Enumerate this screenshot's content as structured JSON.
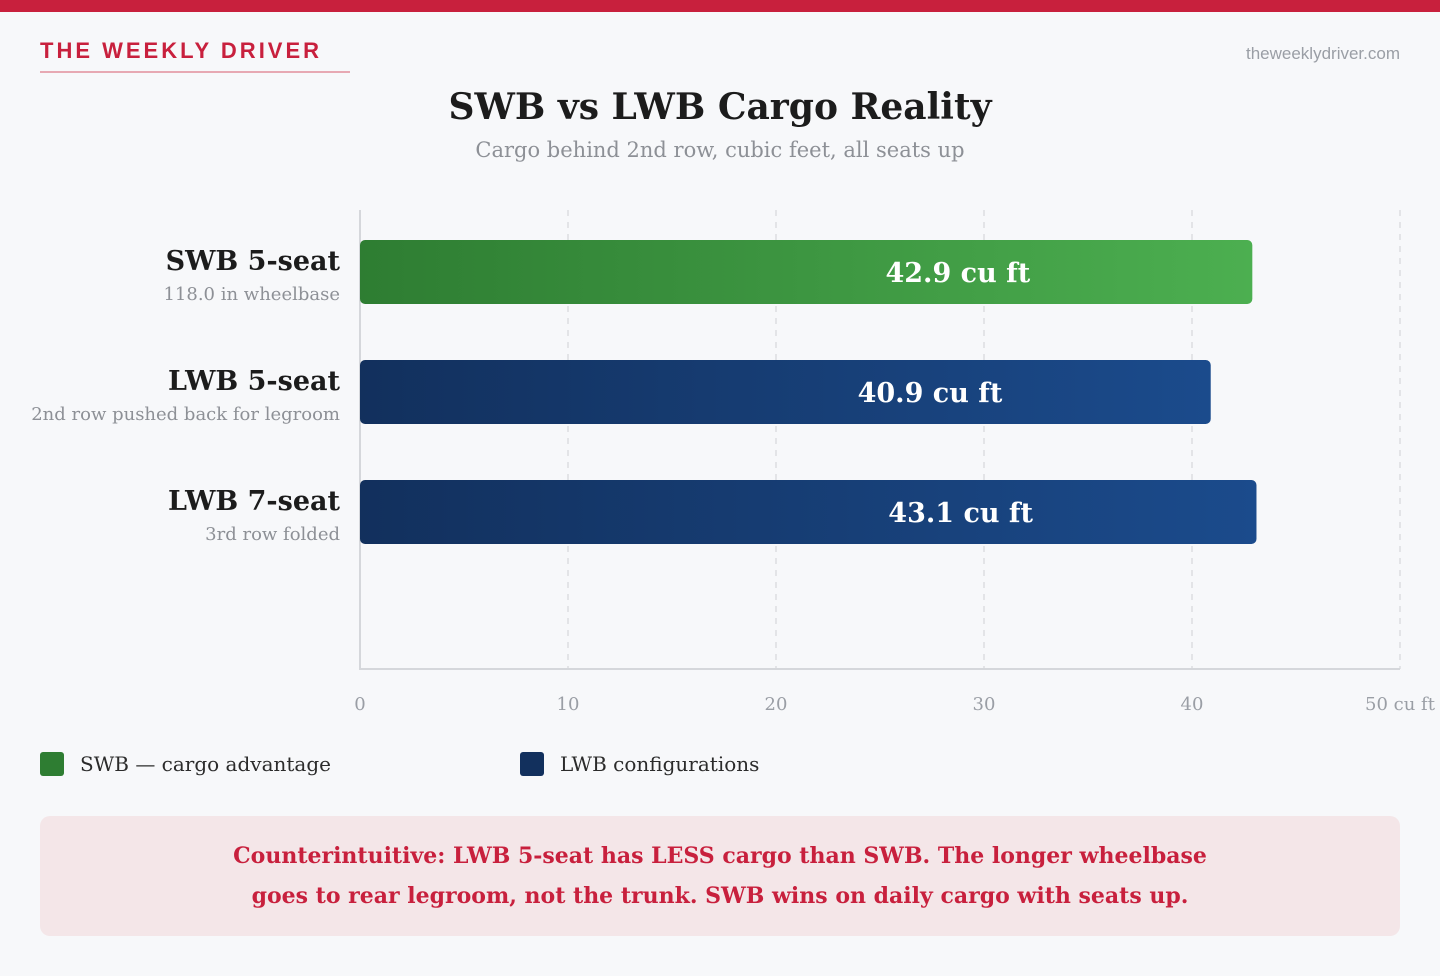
{
  "header": {
    "brand": "THE WEEKLY DRIVER",
    "site_url": "theweeklydriver.com"
  },
  "colors": {
    "accent": "#c8203d",
    "swb_dark": "#2e7d32",
    "swb_light": "#4caf50",
    "lwb_dark": "#12305d",
    "lwb_light": "#1b4b8c"
  },
  "chart_data": {
    "type": "bar",
    "orientation": "horizontal",
    "title": "SWB vs LWB Cargo Reality",
    "subtitle": "Cargo behind 2nd row, cubic feet, all seats up",
    "categories": [
      "SWB 5-seat",
      "LWB 5-seat",
      "LWB 7-seat"
    ],
    "category_notes": [
      "118.0 in wheelbase",
      "2nd row pushed back for legroom",
      "3rd row folded"
    ],
    "values": [
      42.9,
      40.9,
      43.1
    ],
    "value_labels": [
      "42.9 cu ft",
      "40.9 cu ft",
      "43.1 cu ft"
    ],
    "groups": [
      "swb",
      "lwb",
      "lwb"
    ],
    "xlim": [
      0,
      50
    ],
    "ticks": [
      0,
      10,
      20,
      30,
      40,
      50
    ],
    "tick_labels": [
      "0",
      "10",
      "20",
      "30",
      "40",
      "50 cu ft"
    ],
    "grid": true,
    "legend": [
      {
        "key": "swb",
        "label": "SWB — cargo advantage"
      },
      {
        "key": "lwb",
        "label": "LWB configurations"
      }
    ],
    "legend_position": "bottom-left"
  },
  "callout": {
    "text": "Counterintuitive: LWB 5-seat has LESS cargo than SWB. The longer wheelbase goes to rear legroom, not the trunk. SWB wins on daily cargo with seats up."
  }
}
